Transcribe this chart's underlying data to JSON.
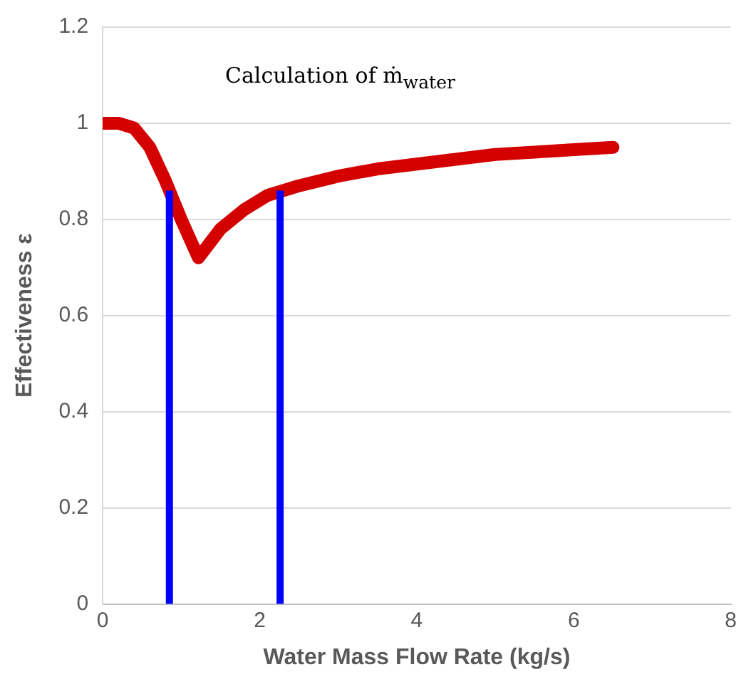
{
  "chart_data": {
    "type": "line",
    "xlabel": "Water Mass Flow Rate (kg/s)",
    "ylabel": "Effectiveness ε",
    "annotations": [
      "Calculation of ṁ$_{water}$"
    ],
    "xlim": [
      0,
      8
    ],
    "xticks": [
      0,
      2,
      4,
      6,
      8
    ],
    "ylim": [
      0,
      1.2
    ],
    "yticks": [
      0,
      0.2,
      0.4,
      0.6,
      0.8,
      1,
      1.2
    ],
    "grid": "y",
    "legend": false,
    "marker": "none",
    "line_style": "solid",
    "series": [
      {
        "color": "#d40000",
        "x": [
          0,
          0.2,
          0.4,
          0.6,
          0.8,
          1.0,
          1.22,
          1.5,
          1.8,
          2.1,
          2.5,
          3,
          3.5,
          4,
          4.5,
          5,
          5.5,
          6,
          6.5
        ],
        "values": [
          1.0,
          1.0,
          0.99,
          0.95,
          0.88,
          0.8,
          0.72,
          0.78,
          0.82,
          0.85,
          0.87,
          0.89,
          0.905,
          0.915,
          0.925,
          0.935,
          0.94,
          0.945,
          0.95
        ]
      },
      {
        "color": "#0000ff",
        "x": [
          0.85,
          0.85
        ],
        "values": [
          0,
          0.86
        ]
      },
      {
        "color": "#0000ff",
        "x": [
          2.26,
          2.26
        ],
        "values": [
          0,
          0.86
        ]
      }
    ]
  }
}
